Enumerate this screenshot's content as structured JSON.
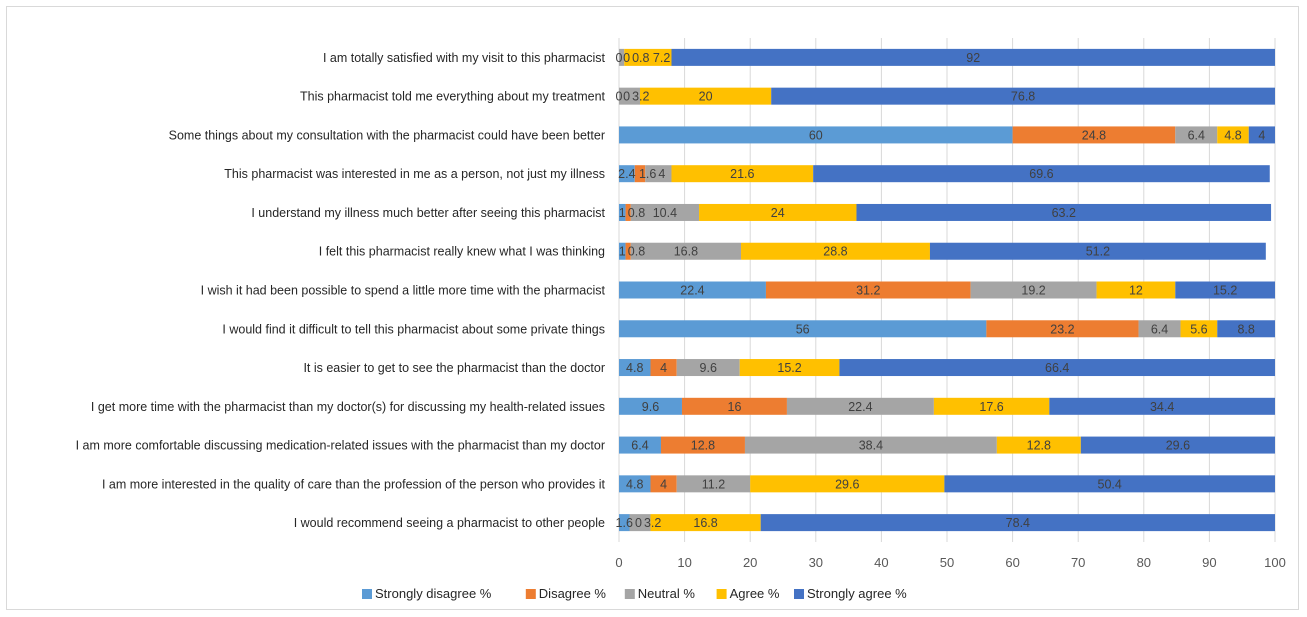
{
  "colors": {
    "strongly_disagree": "#5B9BD5",
    "disagree": "#ED7D31",
    "neutral": "#A5A5A5",
    "agree": "#FFC000",
    "strongly_agree": "#4472C4",
    "gridline": "#d9d9d9",
    "data_label": "#404040"
  },
  "chart_data": {
    "type": "bar",
    "orientation": "horizontal",
    "stacked": true,
    "categories": [
      "I am totally satisfied with my visit to this pharmacist",
      "This pharmacist told me everything about my treatment",
      "Some things about my consultation with the pharmacist could have been better",
      "This pharmacist was interested in me as a person, not just my illness",
      "I understand my illness much better after seeing this pharmacist",
      "I felt this pharmacist really knew what I was thinking",
      "I wish it had been possible to spend a little more time with the pharmacist",
      "I would find it difficult to tell this pharmacist about some private things",
      "It is easier to get to see the pharmacist than the doctor",
      "I get more time with the pharmacist than my doctor(s) for discussing my health-related issues",
      "I am more comfortable discussing medication-related issues with the pharmacist than my doctor",
      "I am more interested in the quality of care than the profession of the person who provides it",
      "I would recommend seeing a pharmacist to other people"
    ],
    "series": [
      {
        "name": "Strongly disagree %",
        "color_key": "strongly_disagree",
        "values": [
          0,
          0,
          60,
          2.4,
          1,
          1,
          22.4,
          56,
          4.8,
          9.6,
          6.4,
          4.8,
          1.6
        ]
      },
      {
        "name": "Disagree %",
        "color_key": "disagree",
        "values": [
          0,
          0,
          24.8,
          1.6,
          0.8,
          0.8,
          31.2,
          23.2,
          4,
          16,
          12.8,
          4,
          0
        ]
      },
      {
        "name": "Neutral %",
        "color_key": "neutral",
        "values": [
          0.8,
          3.2,
          6.4,
          4,
          10.4,
          16.8,
          19.2,
          6.4,
          9.6,
          22.4,
          38.4,
          11.2,
          3.2
        ]
      },
      {
        "name": "Agree %",
        "color_key": "agree",
        "values": [
          7.2,
          20,
          4.8,
          21.6,
          24,
          28.8,
          12,
          5.6,
          15.2,
          17.6,
          12.8,
          29.6,
          16.8
        ]
      },
      {
        "name": "Strongly agree %",
        "color_key": "strongly_agree",
        "values": [
          92,
          76.8,
          4,
          69.6,
          63.2,
          51.2,
          15.2,
          8.8,
          66.4,
          34.4,
          29.6,
          50.4,
          78.4
        ]
      }
    ],
    "xlim": [
      0,
      100
    ],
    "x_ticks": [
      0,
      10,
      20,
      30,
      40,
      50,
      60,
      70,
      80,
      90,
      100
    ],
    "grid": "vertical gridlines",
    "legend_position": "bottom",
    "title": "",
    "xlabel": "",
    "ylabel": ""
  }
}
